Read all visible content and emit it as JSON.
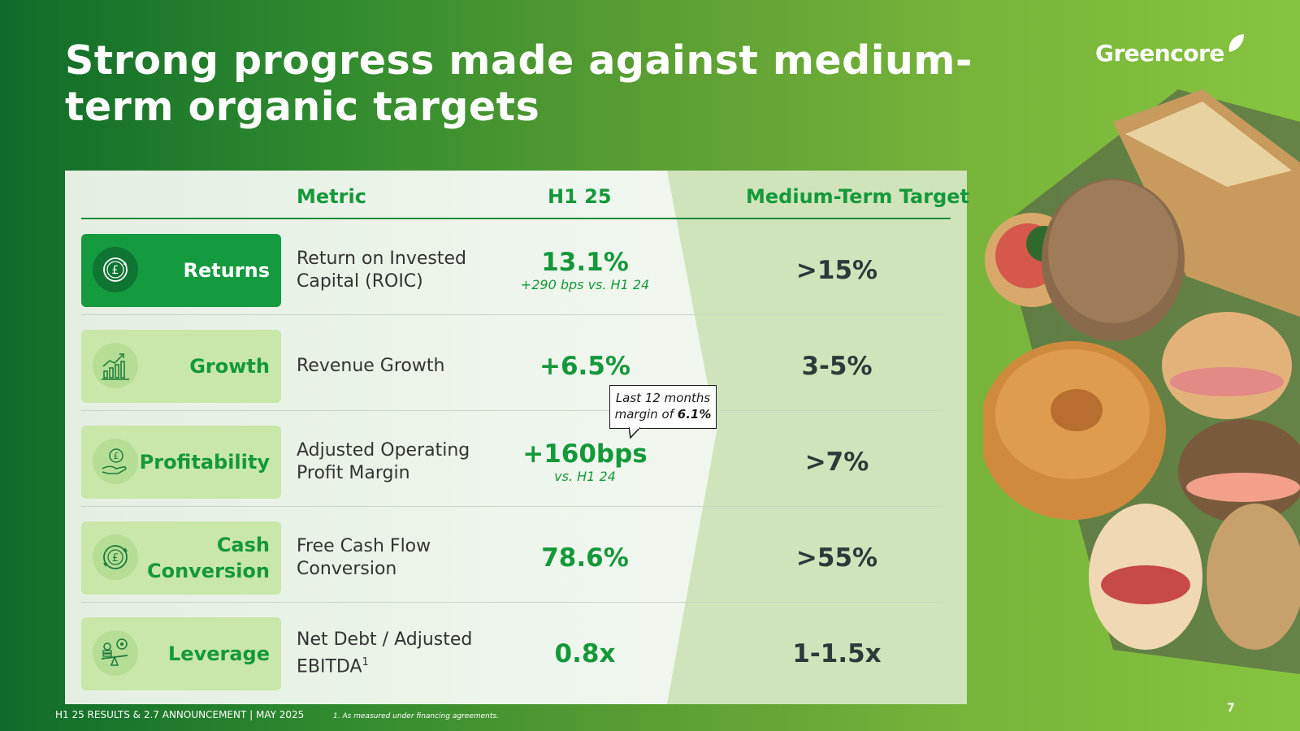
{
  "slide": {
    "title": "Strong progress made against medium-term organic targets",
    "logo_text": "Greencore",
    "footer": "H1 25 RESULTS & 2.7 ANNOUNCEMENT | MAY 2025",
    "footnote": "1. As measured under financing agreements.",
    "page_number": "7"
  },
  "table": {
    "headers": {
      "metric": "Metric",
      "h1": "H1 25",
      "target": "Medium-Term Target"
    },
    "rows": [
      {
        "category": "Returns",
        "icon": "pound-coin-cycle-icon",
        "metric": "Return on Invested Capital (ROIC)",
        "h1_value": "13.1%",
        "h1_note": "+290 bps vs. H1 24",
        "target": ">15%",
        "active": true
      },
      {
        "category": "Growth",
        "icon": "growth-chart-icon",
        "metric": "Revenue Growth",
        "h1_value": "+6.5%",
        "h1_note": "",
        "target": "3-5%",
        "active": false
      },
      {
        "category": "Profitability",
        "icon": "hand-coin-icon",
        "metric": "Adjusted Operating Profit Margin",
        "h1_value": "+160bps",
        "h1_note": "vs. H1 24",
        "target": ">7%",
        "active": false
      },
      {
        "category": "Cash Conversion",
        "icon": "pound-cycle-icon",
        "metric": "Free Cash Flow Conversion",
        "h1_value": "78.6%",
        "h1_note": "",
        "target": ">55%",
        "active": false
      },
      {
        "category": "Leverage",
        "icon": "balance-scale-icon",
        "metric": "Net Debt / Adjusted EBITDA",
        "metric_sup": "1",
        "h1_value": "0.8x",
        "h1_note": "",
        "target": "1-1.5x",
        "active": false
      }
    ],
    "callout": {
      "line1": "Last 12 months",
      "line2_prefix": "margin of ",
      "line2_bold": "6.1%"
    }
  },
  "colors": {
    "brand_green": "#14983a",
    "dark_green": "#0f6b2a",
    "light_green": "#86c440",
    "pill_light": "#c8e7a9"
  }
}
